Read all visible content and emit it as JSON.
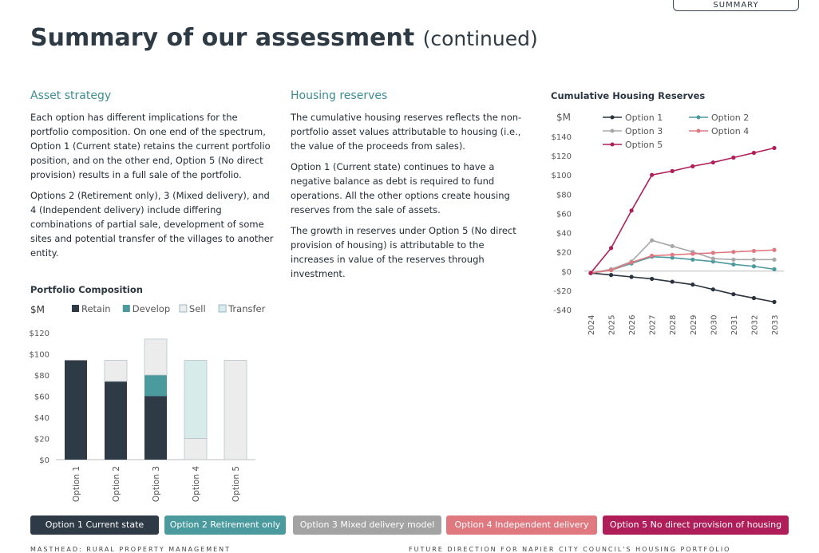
{
  "header": {
    "tab_label": "SUMMARY",
    "title_main": "Summary of our assessment",
    "title_suffix": "(continued)"
  },
  "asset_strategy": {
    "heading": "Asset strategy",
    "p1": "Each option has different implications for the portfolio composition. On one end of the spectrum, Option 1 (Current state) retains the current portfolio position, and on the other end, Option 5 (No direct provision) results in a full sale of the portfolio.",
    "p2": "Options 2 (Retirement only), 3 (Mixed delivery), and 4 (Independent delivery) include differing combinations of partial sale, development of some sites and potential transfer of the villages to another entity."
  },
  "housing_reserves": {
    "heading": "Housing reserves",
    "p1": "The cumulative housing reserves reflects the non-portfolio asset values attributable to housing (i.e., the value of the proceeds from sales).",
    "p2": "Option 1 (Current state) continues to have a negative balance as debt is required to fund operations. All the other options create housing reserves from the sale of assets.",
    "p3": "The growth in reserves under Option 5 (No direct provision of housing) is attributable to the increases in value of the reserves through investment."
  },
  "chart_data": [
    {
      "type": "bar",
      "stacked": true,
      "title": "Portfolio Composition",
      "ylabel": "$M",
      "categories": [
        "Option 1",
        "Option 2",
        "Option 3",
        "Option 4",
        "Option 5"
      ],
      "series": [
        {
          "name": "Retain",
          "color": "#2e3a45",
          "values": [
            94,
            74,
            60,
            0,
            0
          ]
        },
        {
          "name": "Develop",
          "color": "#4a9a9e",
          "values": [
            0,
            0,
            20,
            0,
            0
          ]
        },
        {
          "name": "Sell",
          "color": "#ececec",
          "values": [
            0,
            20,
            34,
            20,
            94
          ]
        },
        {
          "name": "Transfer",
          "color": "#d8ebeb",
          "values": [
            0,
            0,
            0,
            74,
            0
          ]
        }
      ],
      "ylim": [
        0,
        120
      ],
      "yticks": [
        0,
        20,
        40,
        60,
        80,
        100,
        120
      ],
      "ytick_labels": [
        "$0",
        "$20",
        "$40",
        "$60",
        "$80",
        "$100",
        "$120"
      ],
      "legend_position": "top"
    },
    {
      "type": "line",
      "title": "Cumulative Housing Reserves",
      "ylabel": "$M",
      "x": [
        "2024",
        "2025",
        "2026",
        "2027",
        "2028",
        "2029",
        "2030",
        "2031",
        "2032",
        "2033"
      ],
      "series": [
        {
          "name": "Option 1",
          "color": "#2a333d",
          "values": [
            -2,
            -4,
            -6,
            -8,
            -11,
            -14,
            -19,
            -24,
            -28,
            -32
          ]
        },
        {
          "name": "Option 2",
          "color": "#4a9a9e",
          "values": [
            -2,
            1,
            8,
            15,
            14,
            12,
            10,
            7,
            5,
            2
          ]
        },
        {
          "name": "Option 3",
          "color": "#a8a8a8",
          "values": [
            -2,
            2,
            10,
            32,
            26,
            20,
            13,
            12,
            12,
            12
          ]
        },
        {
          "name": "Option 4",
          "color": "#e07880",
          "values": [
            -2,
            1,
            9,
            16,
            17,
            18,
            19,
            20,
            21,
            22
          ]
        },
        {
          "name": "Option 5",
          "color": "#b01e5a",
          "values": [
            -2,
            24,
            63,
            100,
            104,
            109,
            113,
            118,
            123,
            128
          ]
        }
      ],
      "ylim": [
        -40,
        140
      ],
      "yticks": [
        -40,
        -20,
        0,
        20,
        40,
        60,
        80,
        100,
        120,
        140
      ],
      "ytick_labels": [
        "-$40",
        "-$20",
        "$0",
        "$20",
        "$40",
        "$60",
        "$80",
        "$100",
        "$120",
        "$140"
      ],
      "legend_position": "top"
    }
  ],
  "option_legend": [
    {
      "label": "Option 1 Current state",
      "color": "#2e3a45"
    },
    {
      "label": "Option 2 Retirement only",
      "color": "#4a9a9e"
    },
    {
      "label": "Option 3 Mixed delivery model",
      "color": "#a3a3a3"
    },
    {
      "label": "Option 4 Independent delivery",
      "color": "#e07880"
    },
    {
      "label": "Option 5 No direct provision of housing",
      "color": "#b01e5a"
    }
  ],
  "footer": {
    "left": "MASTHEAD: RURAL PROPERTY MANAGEMENT",
    "right": "FUTURE DIRECTION FOR NAPIER CITY COUNCIL'S HOUSING PORTFOLIO"
  }
}
